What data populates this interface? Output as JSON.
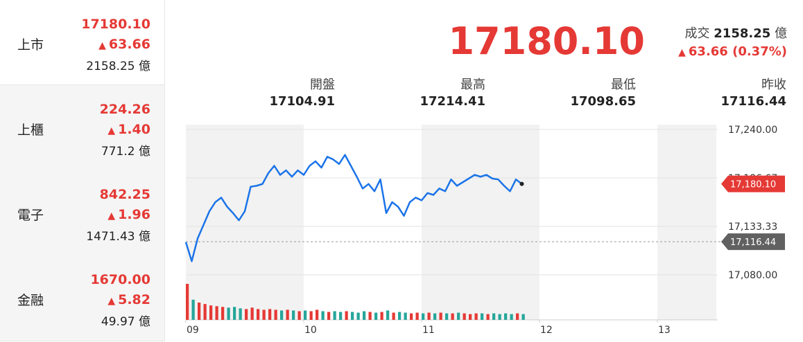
{
  "sidebar": [
    {
      "name": "上市",
      "price": "17180.10",
      "change": "63.66",
      "turnover": "2158.25 億"
    },
    {
      "name": "上櫃",
      "price": "224.26",
      "change": "1.40",
      "turnover": "771.2 億"
    },
    {
      "name": "電子",
      "price": "842.25",
      "change": "1.96",
      "turnover": "1471.43 億"
    },
    {
      "name": "金融",
      "price": "1670.00",
      "change": "5.82",
      "turnover": "49.97 億"
    }
  ],
  "header": {
    "price": "17180.10",
    "turnover_label": "成交",
    "turnover": "2158.25",
    "turnover_unit": "億",
    "change": "63.66 (0.37%)"
  },
  "stats": [
    {
      "label": "開盤",
      "value": "17104.91"
    },
    {
      "label": "最高",
      "value": "17214.41"
    },
    {
      "label": "最低",
      "value": "17098.65"
    },
    {
      "label": "昨收",
      "value": "17116.44"
    }
  ],
  "chart_data": {
    "type": "line",
    "x": [
      9,
      9.05,
      9.1,
      9.15,
      9.2,
      9.25,
      9.3,
      9.35,
      9.4,
      9.45,
      9.5,
      9.55,
      9.6,
      9.65,
      9.7,
      9.75,
      9.8,
      9.85,
      9.9,
      9.95,
      10,
      10.05,
      10.1,
      10.15,
      10.2,
      10.25,
      10.3,
      10.35,
      10.4,
      10.45,
      10.5,
      10.55,
      10.6,
      10.65,
      10.7,
      10.75,
      10.8,
      10.85,
      10.9,
      10.95,
      11,
      11.05,
      11.1,
      11.15,
      11.2,
      11.25,
      11.3,
      11.35,
      11.4,
      11.45,
      11.5,
      11.55,
      11.6,
      11.65,
      11.7,
      11.75,
      11.8,
      11.85
    ],
    "series": [
      {
        "color": "#1a73e8",
        "values": [
          17116,
          17095,
          17120,
          17135,
          17150,
          17160,
          17165,
          17155,
          17148,
          17140,
          17150,
          17177,
          17178,
          17180,
          17192,
          17200,
          17190,
          17195,
          17188,
          17195,
          17190,
          17200,
          17205,
          17198,
          17210,
          17207,
          17202,
          17212,
          17200,
          17188,
          17175,
          17180,
          17172,
          17185,
          17148,
          17160,
          17155,
          17145,
          17160,
          17165,
          17162,
          17170,
          17168,
          17175,
          17172,
          17185,
          17178,
          17182,
          17186,
          17190,
          17188,
          17190,
          17186,
          17185,
          17178,
          17172,
          17185,
          17180.1
        ]
      }
    ],
    "volume": [
      50,
      28,
      24,
      22,
      20,
      19,
      18,
      17,
      18,
      16,
      15,
      17,
      15,
      14,
      15,
      14,
      13,
      14,
      13,
      12,
      13,
      12,
      14,
      12,
      11,
      12,
      11,
      12,
      11,
      10,
      12,
      11,
      10,
      11,
      13,
      10,
      11,
      10,
      9,
      10,
      9,
      10,
      9,
      10,
      9,
      9,
      10,
      9,
      8,
      9,
      9,
      8,
      9,
      8,
      9,
      8,
      9,
      8
    ],
    "up_color": "#e53935",
    "down_color": "#26a69a",
    "xlim": [
      9,
      13.5
    ],
    "xticks": [
      {
        "value": 9,
        "label": "09"
      },
      10,
      11,
      12,
      13
    ],
    "ylim": [
      17080,
      17240
    ],
    "yticks": [
      {
        "value": 17240,
        "label": "17,240.00"
      },
      {
        "value": 17186.67,
        "label": "17,186.67"
      },
      {
        "value": 17133.33,
        "label": "17,133.33"
      },
      {
        "value": 17080,
        "label": "17,080.00"
      }
    ],
    "last": {
      "value": 17180.1,
      "label": "17,180.10"
    },
    "prev_close": {
      "value": 17116.44,
      "label": "17,116.44"
    },
    "grid": true
  }
}
